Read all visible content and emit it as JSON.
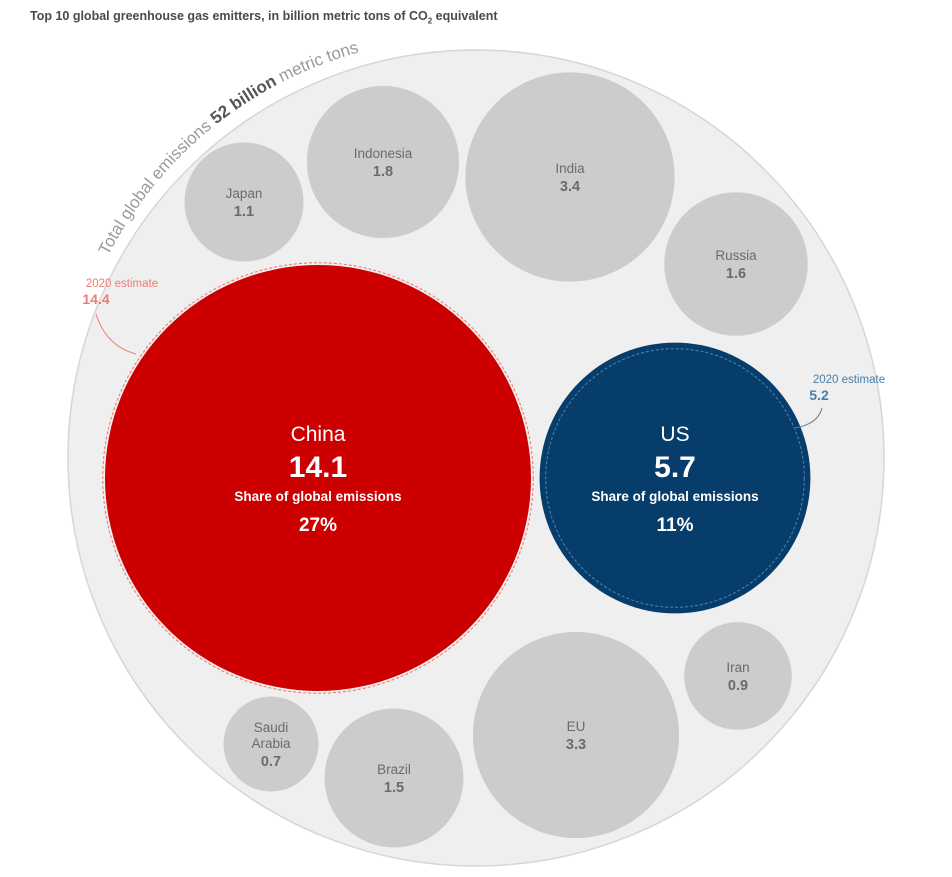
{
  "title": {
    "main": "Top 10 global greenhouse gas emitters, in billion metric tons of CO",
    "sub": "2",
    "tail": " equivalent"
  },
  "chart_data": {
    "type": "bubble",
    "unit": "billion metric tons of CO2 equivalent",
    "total": {
      "prefix": "Total global emissions ",
      "value": "52 billion",
      "suffix": " metric tons",
      "numeric": 52
    },
    "bubbles": [
      {
        "label": "China",
        "lines": [
          "China"
        ],
        "value": 14.1,
        "display": "14.1",
        "share_label": "Share of global emissions",
        "share": "27%",
        "color": "#cc0000",
        "text_color": "#ffffff",
        "estimate": {
          "label": "2020 estimate",
          "value": 14.4,
          "display": "14.4",
          "color": "#f27a73"
        }
      },
      {
        "label": "US",
        "lines": [
          "US"
        ],
        "value": 5.7,
        "display": "5.7",
        "share_label": "Share of global emissions",
        "share": "11%",
        "color": "#063d6b",
        "text_color": "#ffffff",
        "estimate": {
          "label": "2020 estimate",
          "value": 5.2,
          "display": "5.2",
          "color": "#4a7ea8"
        }
      },
      {
        "label": "India",
        "lines": [
          "India"
        ],
        "value": 3.4,
        "display": "3.4",
        "color": "#cccccc",
        "text_color": "#6b6b6b"
      },
      {
        "label": "EU",
        "lines": [
          "EU"
        ],
        "value": 3.3,
        "display": "3.3",
        "color": "#cccccc",
        "text_color": "#6b6b6b"
      },
      {
        "label": "Indonesia",
        "lines": [
          "Indonesia"
        ],
        "value": 1.8,
        "display": "1.8",
        "color": "#cccccc",
        "text_color": "#6b6b6b"
      },
      {
        "label": "Russia",
        "lines": [
          "Russia"
        ],
        "value": 1.6,
        "display": "1.6",
        "color": "#cccccc",
        "text_color": "#6b6b6b"
      },
      {
        "label": "Brazil",
        "lines": [
          "Brazil"
        ],
        "value": 1.5,
        "display": "1.5",
        "color": "#cccccc",
        "text_color": "#6b6b6b"
      },
      {
        "label": "Japan",
        "lines": [
          "Japan"
        ],
        "value": 1.1,
        "display": "1.1",
        "color": "#cccccc",
        "text_color": "#6b6b6b"
      },
      {
        "label": "Iran",
        "lines": [
          "Iran"
        ],
        "value": 0.9,
        "display": "0.9",
        "color": "#cccccc",
        "text_color": "#6b6b6b"
      },
      {
        "label": "Saudi Arabia",
        "lines": [
          "Saudi",
          "Arabia"
        ],
        "value": 0.7,
        "display": "0.7",
        "color": "#cccccc",
        "text_color": "#6b6b6b"
      }
    ],
    "background_color": "#efefef"
  }
}
